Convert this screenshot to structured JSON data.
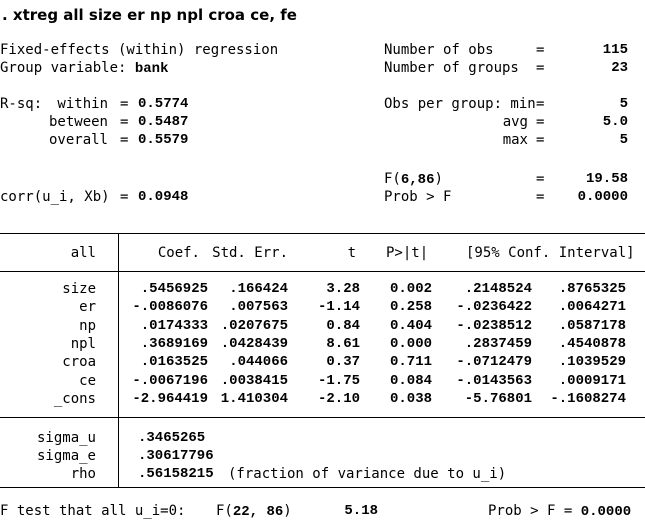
{
  "command": ". xtreg all size er np npl croa ce, fe",
  "header": {
    "model_title": "Fixed-effects (within) regression",
    "group_var_label": "Group variable: ",
    "group_var_value": "bank",
    "nobs_label": "Number of obs",
    "nobs_value": "115",
    "ngroups_label": "Number of groups",
    "ngroups_value": "23",
    "eq": "=",
    "rsq_label": "R-sq:",
    "rsq_within_label": "within",
    "rsq_within_value": "0.5774",
    "rsq_between_label": "between",
    "rsq_between_value": "0.5487",
    "rsq_overall_label": "overall",
    "rsq_overall_value": "0.5579",
    "obs_per_group_label": "Obs per group: min",
    "obs_min_value": "5",
    "avg_label": "avg",
    "avg_value": "5.0",
    "max_label": "max",
    "max_value": "5",
    "f_label_prefix": "F(",
    "f_df": "6,86",
    "f_label_suffix": ")",
    "f_value": "19.58",
    "probf_label": "Prob > F",
    "probf_value": "0.0000",
    "corr_label": "corr(u_i, Xb)",
    "corr_value": "0.0948"
  },
  "table": {
    "depvar": "all",
    "columns": [
      "Coef.",
      "Std. Err.",
      "t",
      "P>|t|",
      "[95% Conf. Interval]"
    ],
    "rows": [
      {
        "name": "size",
        "coef": ".5456925",
        "se": ".166424",
        "t": "3.28",
        "p": "0.002",
        "lo": ".2148524",
        "hi": ".8765325"
      },
      {
        "name": "er",
        "coef": "-.0086076",
        "se": ".007563",
        "t": "-1.14",
        "p": "0.258",
        "lo": "-.0236422",
        "hi": ".0064271"
      },
      {
        "name": "np",
        "coef": ".0174333",
        "se": ".0207675",
        "t": "0.84",
        "p": "0.404",
        "lo": "-.0238512",
        "hi": ".0587178"
      },
      {
        "name": "npl",
        "coef": ".3689169",
        "se": ".0428439",
        "t": "8.61",
        "p": "0.000",
        "lo": ".2837459",
        "hi": ".4540878"
      },
      {
        "name": "croa",
        "coef": ".0163525",
        "se": ".044066",
        "t": "0.37",
        "p": "0.711",
        "lo": "-.0712479",
        "hi": ".1039529"
      },
      {
        "name": "ce",
        "coef": "-.0067196",
        "se": ".0038415",
        "t": "-1.75",
        "p": "0.084",
        "lo": "-.0143563",
        "hi": ".0009171"
      },
      {
        "name": "_cons",
        "coef": "-2.964419",
        "se": "1.410304",
        "t": "-2.10",
        "p": "0.038",
        "lo": "-5.76801",
        "hi": "-.1608274"
      }
    ],
    "sigma_u_label": "sigma_u",
    "sigma_u_value": ".3465265",
    "sigma_e_label": "sigma_e",
    "sigma_e_value": ".30617796",
    "rho_label": "rho",
    "rho_value": ".56158215",
    "rho_note": "(fraction of variance due to u_i)"
  },
  "ftest": {
    "label": "F test that all u_i=0:",
    "f_prefix": "F(",
    "df": "22, 86",
    "f_suffix": ")",
    "f_value": "5.18",
    "prob_label": "Prob > F = ",
    "prob_value": "0.0000"
  }
}
